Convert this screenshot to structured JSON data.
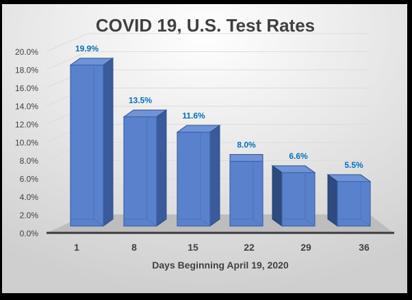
{
  "chart_data": {
    "type": "bar",
    "title": "COVID 19, U.S. Test Rates",
    "xlabel": "Days Beginning April 19, 2020",
    "ylabel": "",
    "categories": [
      "1",
      "8",
      "15",
      "22",
      "29",
      "36"
    ],
    "values": [
      19.9,
      13.5,
      11.6,
      8.0,
      6.6,
      5.5
    ],
    "data_labels": [
      "19.9%",
      "13.5%",
      "11.6%",
      "8.0%",
      "6.6%",
      "5.5%"
    ],
    "ylim": [
      0,
      20
    ],
    "yticks": [
      "0.0%",
      "2.0%",
      "4.0%",
      "6.0%",
      "8.0%",
      "10.0%",
      "12.0%",
      "14.0%",
      "16.0%",
      "18.0%",
      "20.0%"
    ],
    "grid": true,
    "style": "3d-column",
    "colors": {
      "bar": "#5a82cc",
      "bar_side": "#3a5a99",
      "label": "#0070c0",
      "title": "#404040"
    }
  }
}
